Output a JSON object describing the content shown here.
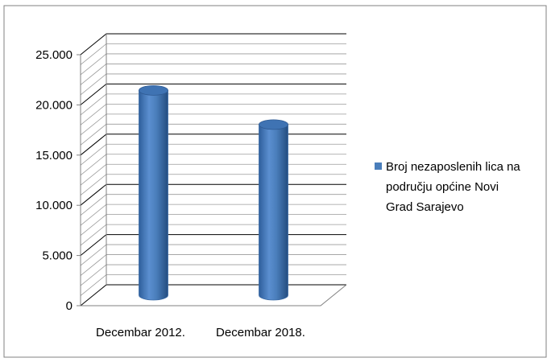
{
  "chart_data": {
    "type": "bar",
    "style": "3d-cylinder",
    "categories": [
      "Decembar 2012.",
      "Decembar 2018."
    ],
    "series": [
      {
        "name": "Broj nezaposlenih lica na području općine Novi Grad Sarajevo",
        "legend_lines": [
          "Broj nezaposlenih lica na",
          "području općine Novi",
          "Grad Sarajevo"
        ],
        "color": "#4A7EBB",
        "values": [
          20400,
          17000
        ]
      }
    ],
    "y_ticks": [
      "0",
      "5.000",
      "10.000",
      "15.000",
      "20.000",
      "25.000"
    ],
    "y_tick_values": [
      0,
      5000,
      10000,
      15000,
      20000,
      25000
    ],
    "ylim": [
      0,
      25000
    ],
    "minor_grid_step": 1000,
    "grid": true,
    "legend_position": "right",
    "title": "",
    "xlabel": "",
    "ylabel": ""
  }
}
